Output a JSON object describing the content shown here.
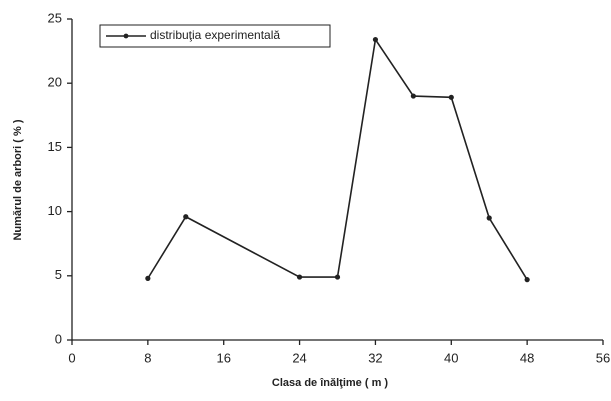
{
  "chart_data": {
    "type": "line",
    "xlabel": "Clasa de înălţime   ( m )",
    "ylabel": "Numărul de arbori  ( % )",
    "x": [
      8,
      12,
      24,
      28,
      32,
      36,
      40,
      44,
      48
    ],
    "series": [
      {
        "name": "distribuţia experimentală",
        "color": "#222222",
        "values": [
          4.8,
          9.6,
          4.9,
          4.9,
          23.4,
          19.0,
          18.9,
          9.5,
          4.7
        ]
      }
    ],
    "xlim": [
      0,
      56
    ],
    "xticks": [
      0,
      8,
      16,
      24,
      32,
      40,
      48,
      56
    ],
    "ylim": [
      0,
      25
    ],
    "yticks": [
      0,
      5,
      10,
      15,
      20,
      25
    ],
    "grid": false,
    "legend": "upper left"
  }
}
